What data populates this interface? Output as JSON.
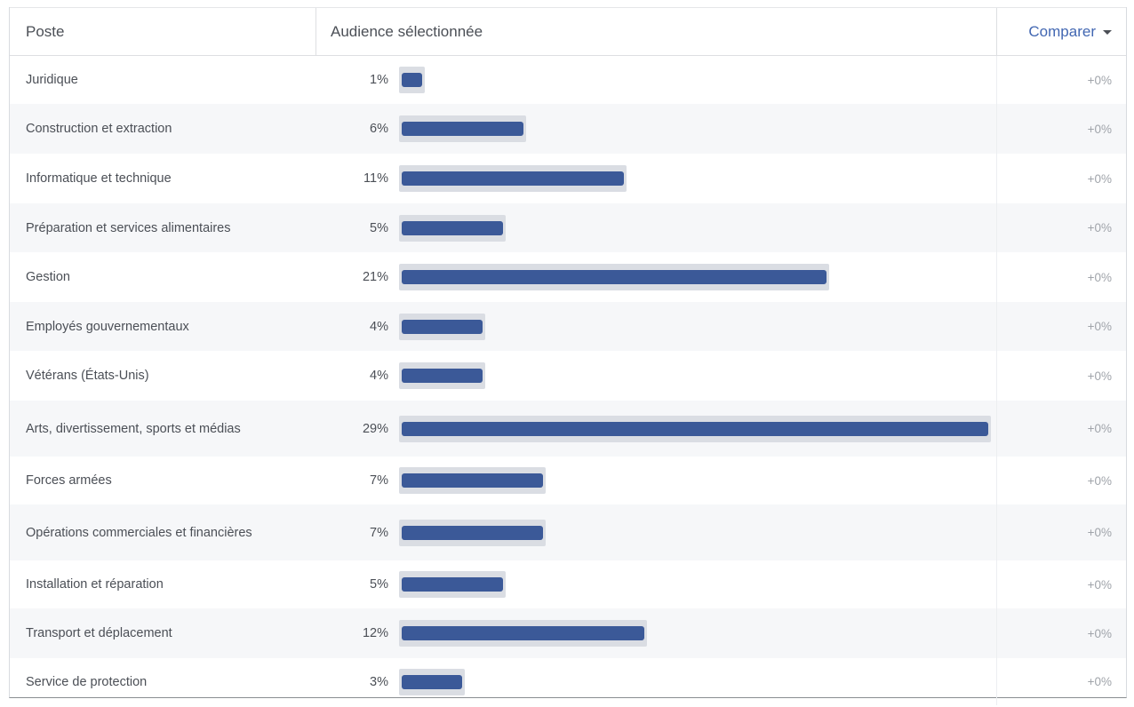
{
  "table": {
    "headers": {
      "poste": "Poste",
      "audience": "Audience sélectionnée",
      "compare": "Comparer"
    },
    "max_value": 29,
    "rows": [
      {
        "label": "Juridique",
        "pct_label": "1%",
        "value": 1,
        "compare": "+0%"
      },
      {
        "label": "Construction et extraction",
        "pct_label": "6%",
        "value": 6,
        "compare": "+0%"
      },
      {
        "label": "Informatique et technique",
        "pct_label": "11%",
        "value": 11,
        "compare": "+0%"
      },
      {
        "label": "Préparation et services alimentaires",
        "pct_label": "5%",
        "value": 5,
        "compare": "+0%"
      },
      {
        "label": "Gestion",
        "pct_label": "21%",
        "value": 21,
        "compare": "+0%"
      },
      {
        "label": "Employés gouvernementaux",
        "pct_label": "4%",
        "value": 4,
        "compare": "+0%"
      },
      {
        "label": "Vétérans (États-Unis)",
        "pct_label": "4%",
        "value": 4,
        "compare": "+0%"
      },
      {
        "label": "Arts, divertissement, sports et médias",
        "pct_label": "29%",
        "value": 29,
        "compare": "+0%"
      },
      {
        "label": "Forces armées",
        "pct_label": "7%",
        "value": 7,
        "compare": "+0%"
      },
      {
        "label": "Opérations commerciales et financières",
        "pct_label": "7%",
        "value": 7,
        "compare": "+0%"
      },
      {
        "label": "Installation et réparation",
        "pct_label": "5%",
        "value": 5,
        "compare": "+0%"
      },
      {
        "label": "Transport et déplacement",
        "pct_label": "12%",
        "value": 12,
        "compare": "+0%"
      },
      {
        "label": "Service de protection",
        "pct_label": "3%",
        "value": 3,
        "compare": "+0%"
      }
    ]
  },
  "colors": {
    "bar": "#3b5998",
    "bar_track": "#dadde3",
    "link": "#4267b2",
    "alt_row": "#f6f7f9"
  },
  "icons": {
    "compare_dropdown": "caret-down-icon"
  }
}
